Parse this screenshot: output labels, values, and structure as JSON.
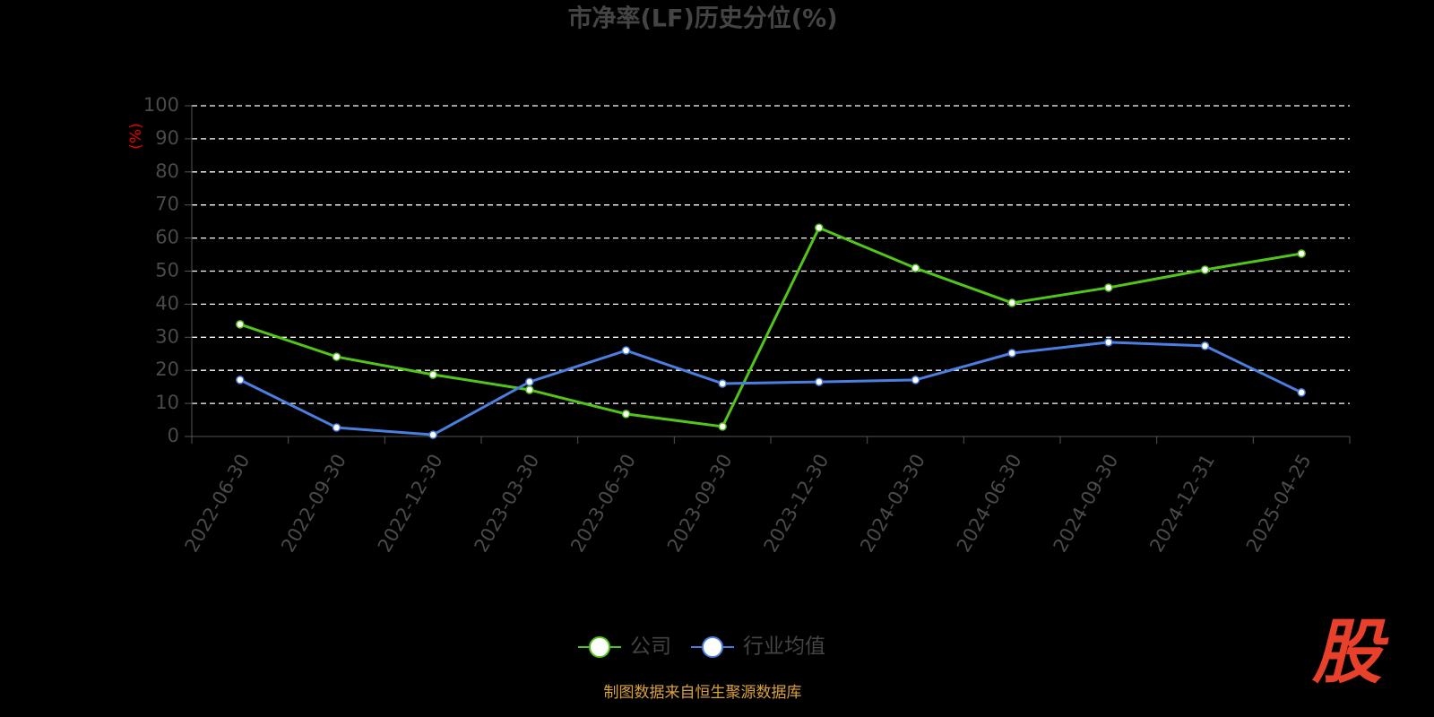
{
  "chart_data": {
    "type": "line",
    "title": "市净率(LF)历史分位(%)",
    "y_label": "(%)",
    "categories": [
      "2022-06-30",
      "2022-09-30",
      "2022-12-30",
      "2023-03-30",
      "2023-06-30",
      "2023-09-30",
      "2023-12-30",
      "2024-03-30",
      "2024-06-30",
      "2024-09-30",
      "2024-12-31",
      "2025-04-25"
    ],
    "series": [
      {
        "name": "公司",
        "color": "#52c41a",
        "values": [
          33.9,
          24.1,
          18.7,
          14.1,
          6.8,
          3.0,
          63.1,
          50.9,
          40.4,
          45.0,
          50.4,
          55.3
        ]
      },
      {
        "name": "行业均值",
        "color": "#4a7fe0",
        "values": [
          17.1,
          2.7,
          0.5,
          16.5,
          26.0,
          16.0,
          16.5,
          17.1,
          25.2,
          28.5,
          27.4,
          13.3
        ]
      }
    ],
    "ylim": [
      0,
      100
    ],
    "yticks": [
      0,
      10,
      20,
      30,
      40,
      50,
      60,
      70,
      80,
      90,
      100
    ],
    "grid": true,
    "legend": "bottom",
    "source": "制图数据来自恒生聚源数据库",
    "logo": "股"
  }
}
